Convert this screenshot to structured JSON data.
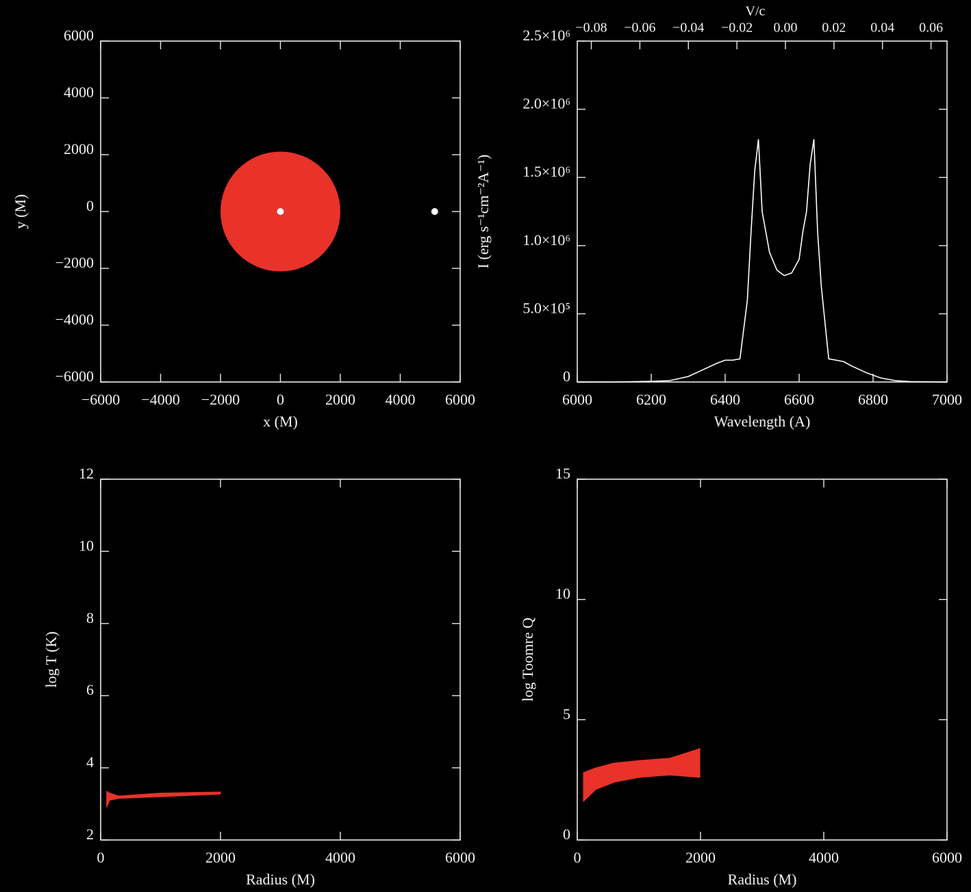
{
  "chart_data": [
    {
      "type": "scatter",
      "xlabel": "x (M)",
      "ylabel": "y (M)",
      "xlim": [
        -6000,
        6000
      ],
      "ylim": [
        -6000,
        6000
      ],
      "xticks": [
        {
          "value": -6000,
          "label": "−6000"
        },
        {
          "value": -4000,
          "label": "−4000"
        },
        {
          "value": -2000,
          "label": "−2000"
        },
        0,
        2000,
        4000,
        6000
      ],
      "yticks": [
        {
          "value": -6000,
          "label": "−6000"
        },
        {
          "value": -4000,
          "label": "−4000"
        },
        {
          "value": -2000,
          "label": "−2000"
        },
        0,
        2000,
        4000,
        6000
      ],
      "series": [
        {
          "color": "#e8322a",
          "x": [
            0
          ],
          "y": [
            0
          ],
          "sizes": [
            2000
          ]
        },
        {
          "color": "#ffffff",
          "x": [
            0,
            5150
          ],
          "y": [
            0,
            0
          ]
        }
      ]
    },
    {
      "type": "line",
      "xlabel": "Wavelength (A)",
      "ylabel": "I (erg s⁻¹cm⁻²A⁻¹)",
      "x2label": "V/c",
      "xlim": [
        6000,
        7000
      ],
      "ylim": [
        0,
        2500000
      ],
      "xticks": [
        6000,
        6200,
        6400,
        6600,
        6800,
        7000
      ],
      "x2lim": [
        -0.0858,
        0.0666
      ],
      "x2ticks": [
        {
          "value": -0.08,
          "label": "−0.08"
        },
        {
          "value": -0.06,
          "label": "−0.06"
        },
        {
          "value": -0.04,
          "label": "−0.04"
        },
        {
          "value": -0.02,
          "label": "−0.02"
        },
        {
          "value": 0,
          "label": "0.00"
        },
        {
          "value": 0.02,
          "label": "0.02"
        },
        {
          "value": 0.04,
          "label": "0.04"
        },
        {
          "value": 0.06,
          "label": "0.06"
        }
      ],
      "yticks": [
        0,
        {
          "value": 500000,
          "label": "5.0×10⁵"
        },
        {
          "value": 1000000,
          "label": "1.0×10⁶"
        },
        {
          "value": 1500000,
          "label": "1.5×10⁶"
        },
        {
          "value": 2000000,
          "label": "2.0×10⁶"
        },
        {
          "value": 2500000,
          "label": "2.5×10⁶"
        }
      ],
      "series": [
        {
          "color": "#ffffff",
          "x": [
            6000,
            6100,
            6200,
            6250,
            6300,
            6340,
            6380,
            6400,
            6420,
            6440,
            6460,
            6470,
            6480,
            6490,
            6500,
            6510,
            6520,
            6540,
            6560,
            6580,
            6600,
            6610,
            6620,
            6630,
            6640,
            6650,
            6660,
            6680,
            6700,
            6720,
            6740,
            6780,
            6820,
            6860,
            6900,
            7000
          ],
          "values": [
            0,
            0,
            5000,
            10000,
            40000,
            90000,
            140000,
            160000,
            160000,
            170000,
            600000,
            1100000,
            1550000,
            1780000,
            1250000,
            1100000,
            950000,
            820000,
            780000,
            800000,
            900000,
            1100000,
            1250000,
            1600000,
            1780000,
            1100000,
            700000,
            170000,
            160000,
            150000,
            120000,
            70000,
            30000,
            10000,
            3000,
            0
          ]
        }
      ]
    },
    {
      "type": "band",
      "xlabel": "Radius (M)",
      "ylabel": "log T (K)",
      "xlim": [
        0,
        6000
      ],
      "ylim": [
        2,
        12
      ],
      "xticks": [
        0,
        2000,
        4000,
        6000
      ],
      "yticks": [
        2,
        4,
        6,
        8,
        10,
        12
      ],
      "series": [
        {
          "color": "#e8322a",
          "x": [
            100,
            150,
            300,
            1000,
            2000
          ],
          "lower": [
            2.9,
            3.1,
            3.15,
            3.2,
            3.27
          ],
          "upper": [
            3.35,
            3.3,
            3.22,
            3.3,
            3.33
          ]
        }
      ]
    },
    {
      "type": "band",
      "xlabel": "Radius (M)",
      "ylabel": "log Toomre Q",
      "xlim": [
        0,
        6000
      ],
      "ylim": [
        0,
        15
      ],
      "xticks": [
        0,
        2000,
        4000,
        6000
      ],
      "yticks": [
        0,
        5,
        10,
        15
      ],
      "series": [
        {
          "color": "#e8322a",
          "x": [
            100,
            300,
            600,
            1000,
            1500,
            1990
          ],
          "lower": [
            1.6,
            2.1,
            2.4,
            2.6,
            2.7,
            2.6
          ],
          "upper": [
            2.8,
            3.0,
            3.2,
            3.3,
            3.4,
            3.8
          ]
        }
      ]
    }
  ]
}
